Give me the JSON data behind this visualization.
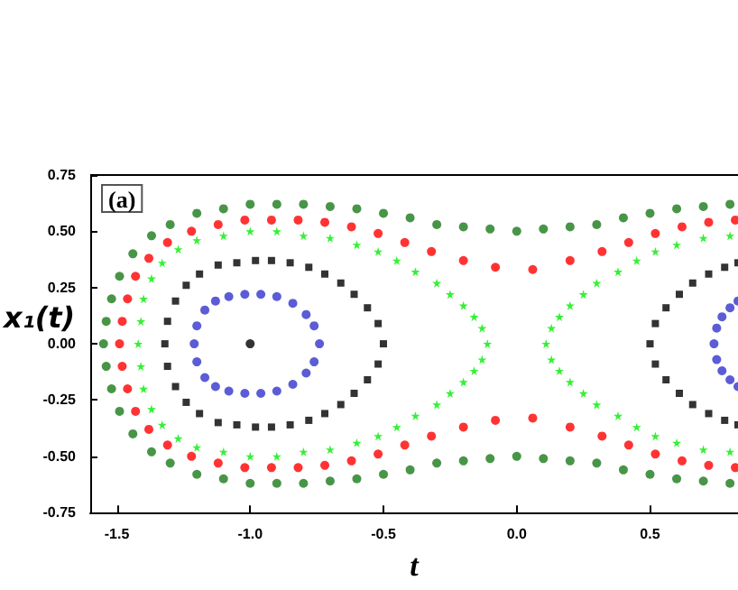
{
  "chart_data": {
    "type": "scatter",
    "xlabel": "t",
    "ylabel": "x₁(t)",
    "annotations": [
      "(a)"
    ],
    "xlim": [
      -1.6,
      0.83
    ],
    "ylim": [
      -0.75,
      0.75
    ],
    "xticks": [
      {
        "value": -1.5,
        "label": "-1.5"
      },
      {
        "value": -1,
        "label": "-1.0"
      },
      {
        "value": -0.5,
        "label": "-0.5"
      },
      {
        "value": 0,
        "label": "0.0"
      },
      {
        "value": 0.5,
        "label": "0.5"
      }
    ],
    "yticks": [
      {
        "value": -0.75,
        "label": "-0.75"
      },
      {
        "value": -0.5,
        "label": "-0.50"
      },
      {
        "value": -0.25,
        "label": "-0.25"
      },
      {
        "value": 0,
        "label": "0.00"
      },
      {
        "value": 0.25,
        "label": "0.25"
      },
      {
        "value": 0.5,
        "label": "0.50"
      },
      {
        "value": 0.75,
        "label": "0.75"
      }
    ],
    "series": [
      {
        "color": "#1a7a1a",
        "marker": "circle",
        "x": [
          -1.55,
          -1.54,
          -1.52,
          -1.49,
          -1.44,
          -1.37,
          -1.3,
          -1.2,
          -1.1,
          -1.0,
          -0.9,
          -0.8,
          -0.7,
          -0.6,
          -0.5,
          -0.4,
          -0.3,
          -0.2,
          -0.1,
          0,
          0.1,
          0.2,
          0.3,
          0.4,
          0.5,
          0.6,
          0.7,
          0.8,
          -1.54,
          -1.52,
          -1.49,
          -1.44,
          -1.37,
          -1.3,
          -1.2,
          -1.1,
          -1.0,
          -0.9,
          -0.8,
          -0.7,
          -0.6,
          -0.5,
          -0.4,
          -0.3,
          -0.2,
          -0.1,
          0,
          0.1,
          0.2,
          0.3,
          0.4,
          0.5,
          0.6,
          0.7,
          0.8
        ],
        "values": [
          0,
          0.1,
          0.2,
          0.3,
          0.4,
          0.48,
          0.53,
          0.58,
          0.6,
          0.62,
          0.62,
          0.62,
          0.61,
          0.6,
          0.58,
          0.56,
          0.53,
          0.52,
          0.51,
          0.5,
          0.51,
          0.52,
          0.53,
          0.56,
          0.58,
          0.6,
          0.61,
          0.62,
          -0.1,
          -0.2,
          -0.3,
          -0.4,
          -0.48,
          -0.53,
          -0.58,
          -0.6,
          -0.62,
          -0.62,
          -0.62,
          -0.61,
          -0.6,
          -0.58,
          -0.56,
          -0.53,
          -0.52,
          -0.51,
          -0.5,
          -0.51,
          -0.52,
          -0.53,
          -0.56,
          -0.58,
          -0.6,
          -0.61,
          -0.62
        ]
      },
      {
        "color": "#ff0000",
        "marker": "circle",
        "x": [
          -1.49,
          -1.48,
          -1.46,
          -1.43,
          -1.38,
          -1.31,
          -1.22,
          -1.12,
          -1.02,
          -0.92,
          -0.82,
          -0.72,
          -0.62,
          -0.52,
          -0.42,
          -0.32,
          -0.2,
          -0.08,
          0.06,
          0.2,
          0.32,
          0.42,
          0.52,
          0.62,
          0.72,
          0.82,
          -1.48,
          -1.46,
          -1.43,
          -1.38,
          -1.31,
          -1.22,
          -1.12,
          -1.02,
          -0.92,
          -0.82,
          -0.72,
          -0.62,
          -0.52,
          -0.42,
          -0.32,
          -0.2,
          -0.08,
          0.06,
          0.2,
          0.32,
          0.42,
          0.52,
          0.62,
          0.72,
          0.82
        ],
        "values": [
          0,
          0.1,
          0.2,
          0.3,
          0.38,
          0.45,
          0.5,
          0.53,
          0.55,
          0.55,
          0.55,
          0.54,
          0.52,
          0.49,
          0.45,
          0.41,
          0.37,
          0.34,
          0.33,
          0.37,
          0.41,
          0.45,
          0.49,
          0.52,
          0.54,
          0.55,
          -0.1,
          -0.2,
          -0.3,
          -0.38,
          -0.45,
          -0.5,
          -0.53,
          -0.55,
          -0.55,
          -0.55,
          -0.54,
          -0.52,
          -0.49,
          -0.45,
          -0.41,
          -0.37,
          -0.34,
          -0.33,
          -0.37,
          -0.41,
          -0.45,
          -0.49,
          -0.52,
          -0.54,
          -0.55
        ]
      },
      {
        "color": "#00ee00",
        "marker": "star",
        "x": [
          -1.42,
          -1.41,
          -1.4,
          -1.37,
          -1.33,
          -1.27,
          -1.2,
          -1.1,
          -1.0,
          -0.9,
          -0.8,
          -0.7,
          -0.6,
          -0.52,
          -0.45,
          -0.38,
          -0.3,
          -0.25,
          -0.2,
          -0.16,
          -0.13,
          -0.11,
          0.11,
          0.13,
          0.16,
          0.2,
          0.25,
          0.3,
          0.38,
          0.45,
          0.52,
          0.6,
          0.7,
          0.8,
          -1.41,
          -1.4,
          -1.37,
          -1.33,
          -1.27,
          -1.2,
          -1.1,
          -1.0,
          -0.9,
          -0.8,
          -0.7,
          -0.6,
          -0.52,
          -0.45,
          -0.38,
          -0.3,
          -0.25,
          -0.2,
          -0.16,
          -0.13,
          0.13,
          0.16,
          0.2,
          0.25,
          0.3,
          0.38,
          0.45,
          0.52,
          0.6,
          0.7,
          0.8
        ],
        "values": [
          0,
          0.1,
          0.2,
          0.29,
          0.36,
          0.42,
          0.46,
          0.48,
          0.5,
          0.5,
          0.48,
          0.47,
          0.44,
          0.41,
          0.37,
          0.32,
          0.27,
          0.22,
          0.17,
          0.12,
          0.07,
          0,
          0,
          0.07,
          0.12,
          0.17,
          0.22,
          0.27,
          0.32,
          0.37,
          0.41,
          0.44,
          0.47,
          0.48,
          -0.1,
          -0.2,
          -0.29,
          -0.36,
          -0.42,
          -0.46,
          -0.48,
          -0.5,
          -0.5,
          -0.48,
          -0.47,
          -0.44,
          -0.41,
          -0.37,
          -0.32,
          -0.27,
          -0.22,
          -0.17,
          -0.12,
          -0.07,
          -0.07,
          -0.12,
          -0.17,
          -0.22,
          -0.27,
          -0.32,
          -0.37,
          -0.41,
          -0.44,
          -0.47,
          -0.48
        ]
      },
      {
        "color": "#000000",
        "marker": "square",
        "x": [
          -1.32,
          -1.31,
          -1.28,
          -1.24,
          -1.19,
          -1.12,
          -1.05,
          -0.98,
          -0.92,
          -0.85,
          -0.78,
          -0.72,
          -0.66,
          -0.61,
          -0.56,
          -0.52,
          -0.5,
          -1.31,
          -1.28,
          -1.24,
          -1.19,
          -1.12,
          -1.05,
          -0.98,
          -0.92,
          -0.85,
          -0.78,
          -0.72,
          -0.66,
          -0.61,
          -0.56,
          -0.52,
          0.5,
          0.52,
          0.56,
          0.61,
          0.66,
          0.72,
          0.78,
          0.83,
          0.52,
          0.56,
          0.61,
          0.66,
          0.72,
          0.78,
          0.83
        ],
        "values": [
          0,
          0.1,
          0.19,
          0.26,
          0.31,
          0.35,
          0.36,
          0.37,
          0.37,
          0.36,
          0.34,
          0.31,
          0.27,
          0.22,
          0.16,
          0.09,
          0,
          -0.1,
          -0.19,
          -0.26,
          -0.31,
          -0.35,
          -0.36,
          -0.37,
          -0.37,
          -0.36,
          -0.34,
          -0.31,
          -0.27,
          -0.22,
          -0.16,
          -0.09,
          0,
          0.09,
          0.16,
          0.22,
          0.27,
          0.31,
          0.34,
          0.36,
          -0.09,
          -0.16,
          -0.22,
          -0.27,
          -0.31,
          -0.34,
          -0.36
        ]
      },
      {
        "color": "#3333cc",
        "marker": "circle",
        "x": [
          -1.21,
          -1.2,
          -1.17,
          -1.13,
          -1.08,
          -1.02,
          -0.96,
          -0.9,
          -0.84,
          -0.79,
          -0.76,
          -0.74,
          -1.2,
          -1.17,
          -1.13,
          -1.08,
          -1.02,
          -0.96,
          -0.9,
          -0.84,
          -0.79,
          -0.76,
          0.74,
          0.75,
          0.77,
          0.8,
          0.83,
          0.75,
          0.77,
          0.8,
          0.83
        ],
        "values": [
          0,
          0.08,
          0.15,
          0.19,
          0.21,
          0.22,
          0.22,
          0.21,
          0.18,
          0.13,
          0.08,
          0,
          -0.08,
          -0.15,
          -0.19,
          -0.21,
          -0.22,
          -0.22,
          -0.21,
          -0.18,
          -0.13,
          -0.08,
          0,
          0.07,
          0.12,
          0.16,
          0.19,
          -0.07,
          -0.12,
          -0.16,
          -0.19
        ]
      },
      {
        "color": "#000000",
        "marker": "circle",
        "x": [
          -1.0
        ],
        "values": [
          0
        ]
      }
    ]
  }
}
